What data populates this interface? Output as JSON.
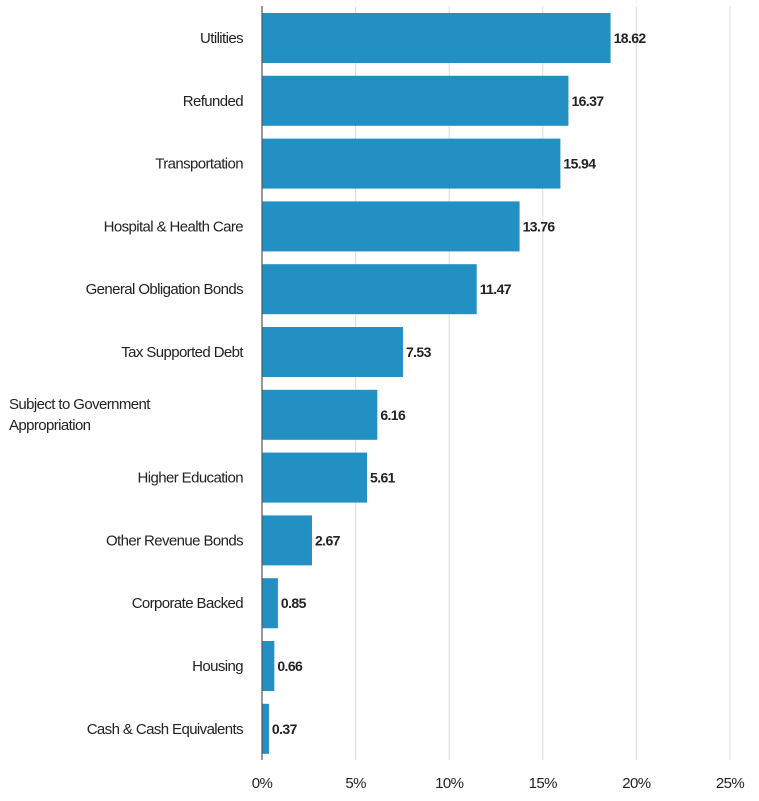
{
  "chart_data": {
    "type": "bar",
    "orientation": "horizontal",
    "categories": [
      "Utilities",
      "Refunded",
      "Transportation",
      "Hospital & Health Care",
      "General Obligation Bonds",
      "Tax Supported Debt",
      "Subject to Government Appropriation",
      "Higher Education",
      "Other Revenue Bonds",
      "Corporate Backed",
      "Housing",
      "Cash & Cash Equivalents"
    ],
    "category_lines": [
      [
        "Utilities"
      ],
      [
        "Refunded"
      ],
      [
        "Transportation"
      ],
      [
        "Hospital & Health Care"
      ],
      [
        "General Obligation Bonds"
      ],
      [
        "Tax Supported Debt"
      ],
      [
        "Subject to Government",
        "Appropriation"
      ],
      [
        "Higher Education"
      ],
      [
        "Other Revenue Bonds"
      ],
      [
        "Corporate Backed"
      ],
      [
        "Housing"
      ],
      [
        "Cash & Cash Equivalents"
      ]
    ],
    "values": [
      18.62,
      16.37,
      15.94,
      13.76,
      11.47,
      7.53,
      6.16,
      5.61,
      2.67,
      0.85,
      0.66,
      0.37
    ],
    "value_labels": [
      "18.62",
      "16.37",
      "15.94",
      "13.76",
      "11.47",
      "7.53",
      "6.16",
      "5.61",
      "2.67",
      "0.85",
      "0.66",
      "0.37"
    ],
    "xlim": [
      0,
      25
    ],
    "xticks": [
      0,
      5,
      10,
      15,
      20,
      25
    ],
    "xtick_labels": [
      "0%",
      "5%",
      "10%",
      "15%",
      "20%",
      "25%"
    ],
    "grid": true,
    "legend": "none",
    "bar_color": "#2390c4"
  }
}
